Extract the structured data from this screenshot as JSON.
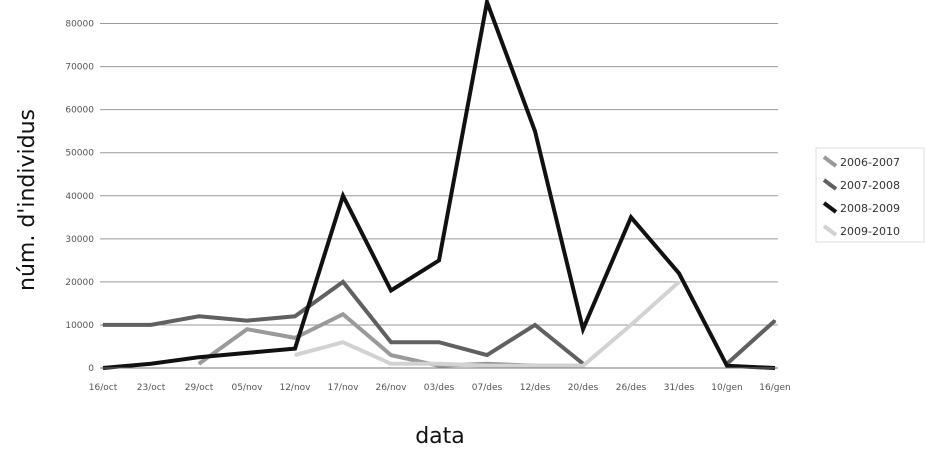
{
  "chart_data": {
    "type": "line",
    "xlabel": "data",
    "ylabel": "núm. d'individus",
    "categories": [
      "16/oct",
      "23/oct",
      "29/oct",
      "05/nov",
      "12/nov",
      "17/nov",
      "26/nov",
      "03/des",
      "07/des",
      "12/des",
      "20/des",
      "26/des",
      "31/des",
      "10/gen",
      "16/gen"
    ],
    "yticks": [
      0,
      10000,
      20000,
      30000,
      40000,
      50000,
      60000,
      70000,
      80000
    ],
    "ytick_labels": [
      "0",
      "10000",
      "20000",
      "30000",
      "40000",
      "50000",
      "60000",
      "70000",
      "80000"
    ],
    "ylim": [
      0,
      85000
    ],
    "grid": true,
    "legend_position": "right",
    "series": [
      {
        "name": "2006-2007",
        "color": "#9a9a9a",
        "width": 4,
        "values": [
          null,
          null,
          1000,
          9000,
          7000,
          12500,
          3000,
          500,
          1000,
          500,
          500,
          null,
          null,
          null,
          null
        ]
      },
      {
        "name": "2007-2008",
        "color": "#606060",
        "width": 4,
        "values": [
          10000,
          10000,
          12000,
          11000,
          12000,
          20000,
          6000,
          6000,
          3000,
          10000,
          1000,
          null,
          null,
          1000,
          11000
        ]
      },
      {
        "name": "2008-2009",
        "color": "#111111",
        "width": 4,
        "values": [
          0,
          1000,
          2500,
          3500,
          4500,
          40000,
          18000,
          25000,
          85000,
          55000,
          9000,
          35000,
          22000,
          500,
          0
        ]
      },
      {
        "name": "2009-2010",
        "color": "#d2d2d2",
        "width": 4,
        "values": [
          null,
          null,
          null,
          null,
          3000,
          6000,
          1000,
          1000,
          500,
          500,
          500,
          10000,
          20000,
          null,
          null
        ]
      }
    ]
  }
}
